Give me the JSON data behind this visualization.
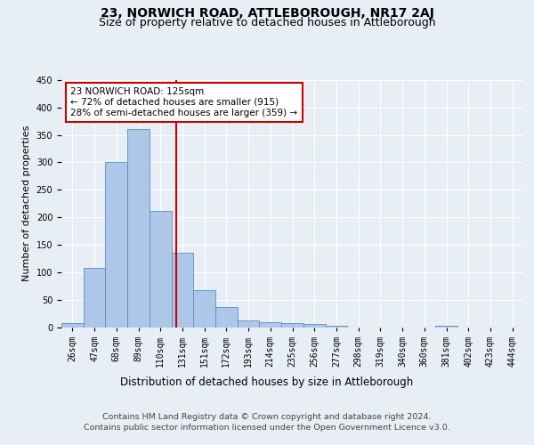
{
  "title": "23, NORWICH ROAD, ATTLEBOROUGH, NR17 2AJ",
  "subtitle": "Size of property relative to detached houses in Attleborough",
  "xlabel": "Distribution of detached houses by size in Attleborough",
  "ylabel": "Number of detached properties",
  "footer_line1": "Contains HM Land Registry data © Crown copyright and database right 2024.",
  "footer_line2": "Contains public sector information licensed under the Open Government Licence v3.0.",
  "bin_labels": [
    "26sqm",
    "47sqm",
    "68sqm",
    "89sqm",
    "110sqm",
    "131sqm",
    "151sqm",
    "172sqm",
    "193sqm",
    "214sqm",
    "235sqm",
    "256sqm",
    "277sqm",
    "298sqm",
    "319sqm",
    "340sqm",
    "360sqm",
    "381sqm",
    "402sqm",
    "423sqm",
    "444sqm"
  ],
  "bar_heights": [
    7,
    108,
    300,
    360,
    212,
    135,
    68,
    37,
    12,
    9,
    8,
    5,
    2,
    0,
    0,
    0,
    0,
    2,
    0,
    0,
    0
  ],
  "bar_color": "#aec6e8",
  "bar_edge_color": "#5a8fc0",
  "vline_color": "#cc0000",
  "annotation_text": "23 NORWICH ROAD: 125sqm\n← 72% of detached houses are smaller (915)\n28% of semi-detached houses are larger (359) →",
  "annotation_box_facecolor": "#ffffff",
  "annotation_box_edgecolor": "#cc0000",
  "ylim": [
    0,
    450
  ],
  "yticks": [
    0,
    50,
    100,
    150,
    200,
    250,
    300,
    350,
    400,
    450
  ],
  "background_color": "#e8eef5",
  "plot_background": "#e8eef5",
  "grid_color": "#ffffff",
  "title_fontsize": 10,
  "subtitle_fontsize": 9,
  "tick_fontsize": 7,
  "ylabel_fontsize": 8,
  "xlabel_fontsize": 8.5,
  "annotation_fontsize": 7.5,
  "footer_fontsize": 6.8
}
